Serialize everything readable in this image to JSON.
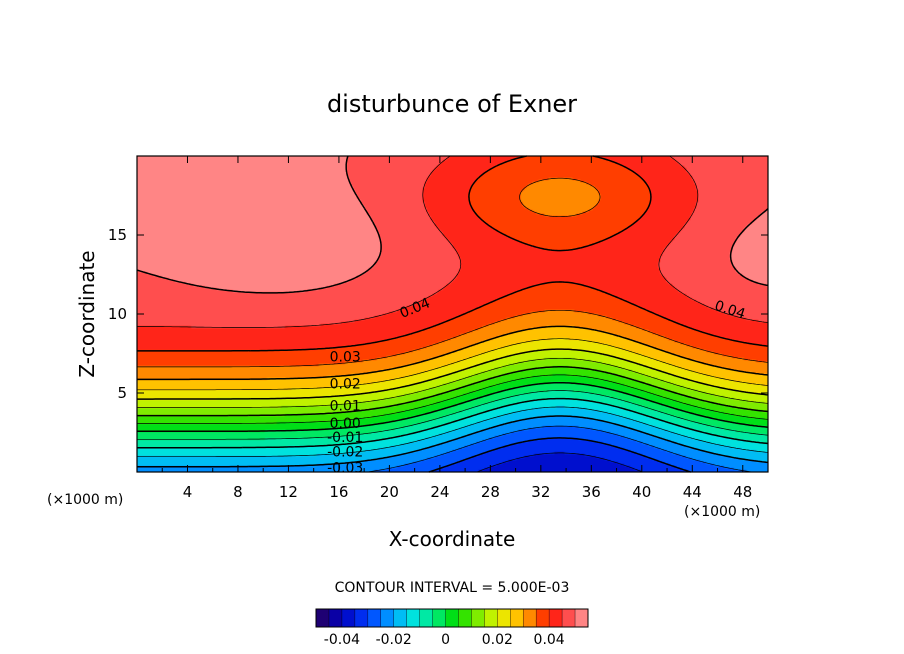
{
  "chart_data": {
    "type": "heatmap",
    "title": "disturbunce of Exner",
    "xlabel": "X-coordinate",
    "ylabel": "Z-coordinate",
    "x_unit": "(×1000 m)",
    "y_unit": "(×1000 m)",
    "xlim": [
      0,
      50
    ],
    "ylim": [
      0,
      20
    ],
    "x_ticks": [
      4,
      8,
      12,
      16,
      20,
      24,
      28,
      32,
      36,
      40,
      44,
      48
    ],
    "y_ticks": [
      5,
      10,
      15
    ],
    "contour_interval_text": "CONTOUR INTERVAL = 5.000E-03",
    "contour_interval": 0.005,
    "contour_labels": [
      {
        "text": "0.04",
        "x": 22,
        "z": 10.4
      },
      {
        "text": "0.04",
        "x": 47,
        "z": 10.3
      },
      {
        "text": "0.03",
        "x": 16.5,
        "z": 7.3
      },
      {
        "text": "0.02",
        "x": 16.5,
        "z": 5.6
      },
      {
        "text": "0.01",
        "x": 16.5,
        "z": 4.2
      },
      {
        "text": "0.00",
        "x": 16.5,
        "z": 3.1
      },
      {
        "text": "-0.01",
        "x": 16.5,
        "z": 2.2
      },
      {
        "text": "-0.02",
        "x": 16.5,
        "z": 1.3
      },
      {
        "text": "-0.03",
        "x": 16.5,
        "z": 0.3
      }
    ],
    "colorbar": {
      "min": -0.05,
      "max": 0.055,
      "tick_values": [
        -0.04,
        -0.02,
        0,
        0.02,
        0.04
      ],
      "tick_labels": [
        "-0.04",
        "-0.02",
        "0",
        "0.02",
        "0.04"
      ]
    },
    "value_range": [
      -0.035,
      0.052
    ],
    "grid": false
  }
}
